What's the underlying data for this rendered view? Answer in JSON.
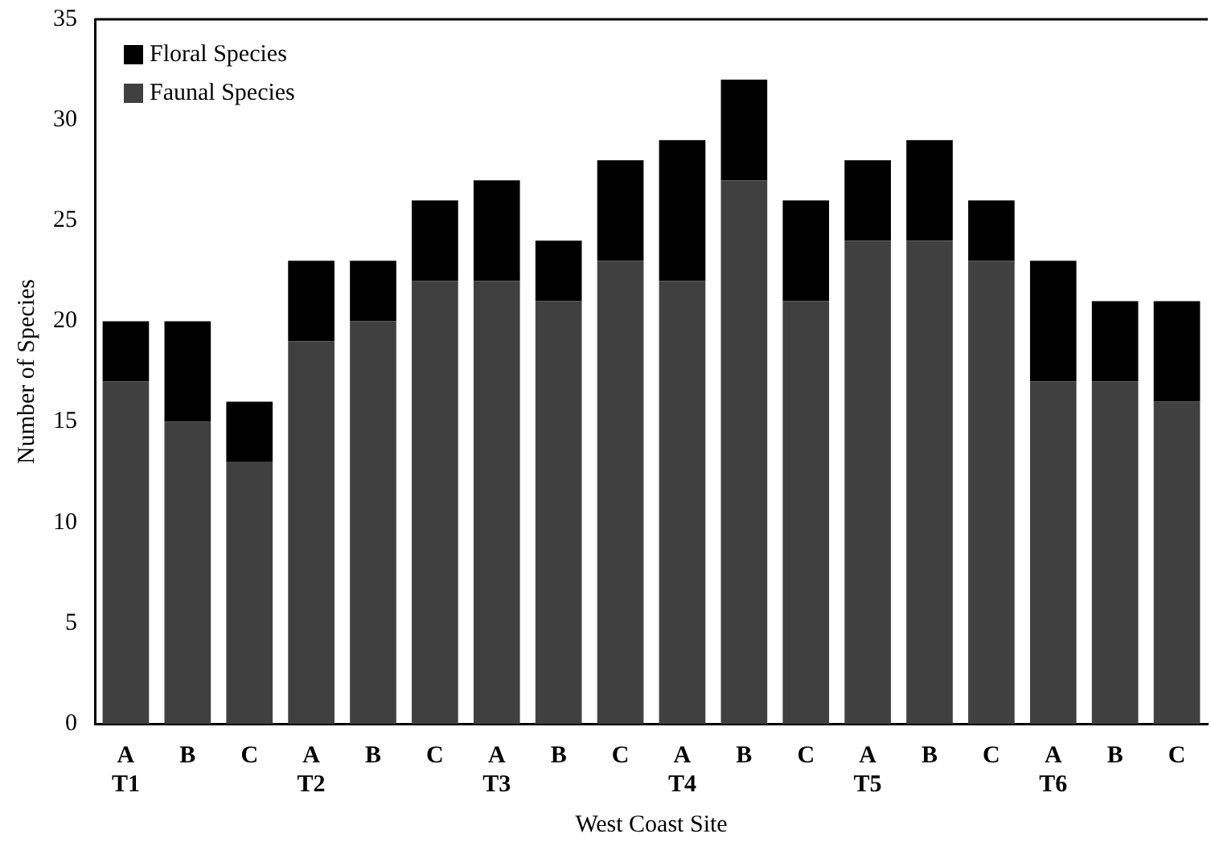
{
  "chart_data": {
    "type": "bar",
    "stacked": true,
    "xlabel": "West Coast Site",
    "ylabel": "Number of Species",
    "categories": [
      "A\nT1",
      "B",
      "C",
      "A\nT2",
      "B",
      "C",
      "A\nT3",
      "B",
      "C",
      "A\nT4",
      "B",
      "C",
      "A\nT5",
      "B",
      "C",
      "A\nT6",
      "B",
      "C"
    ],
    "series": [
      {
        "name": "Faunal Species",
        "color": "#404040",
        "values": [
          17,
          15,
          13,
          19,
          20,
          22,
          22,
          21,
          23,
          22,
          27,
          21,
          24,
          24,
          23,
          17,
          17,
          16
        ]
      },
      {
        "name": "Floral Species",
        "color": "#000000",
        "values": [
          3,
          5,
          3,
          4,
          3,
          4,
          5,
          3,
          5,
          7,
          5,
          5,
          4,
          5,
          3,
          6,
          4,
          5
        ]
      }
    ],
    "ylim": [
      0,
      35
    ],
    "yticks": [
      0,
      5,
      10,
      15,
      20,
      25,
      30,
      35
    ],
    "grid": false,
    "legend": "top left"
  }
}
